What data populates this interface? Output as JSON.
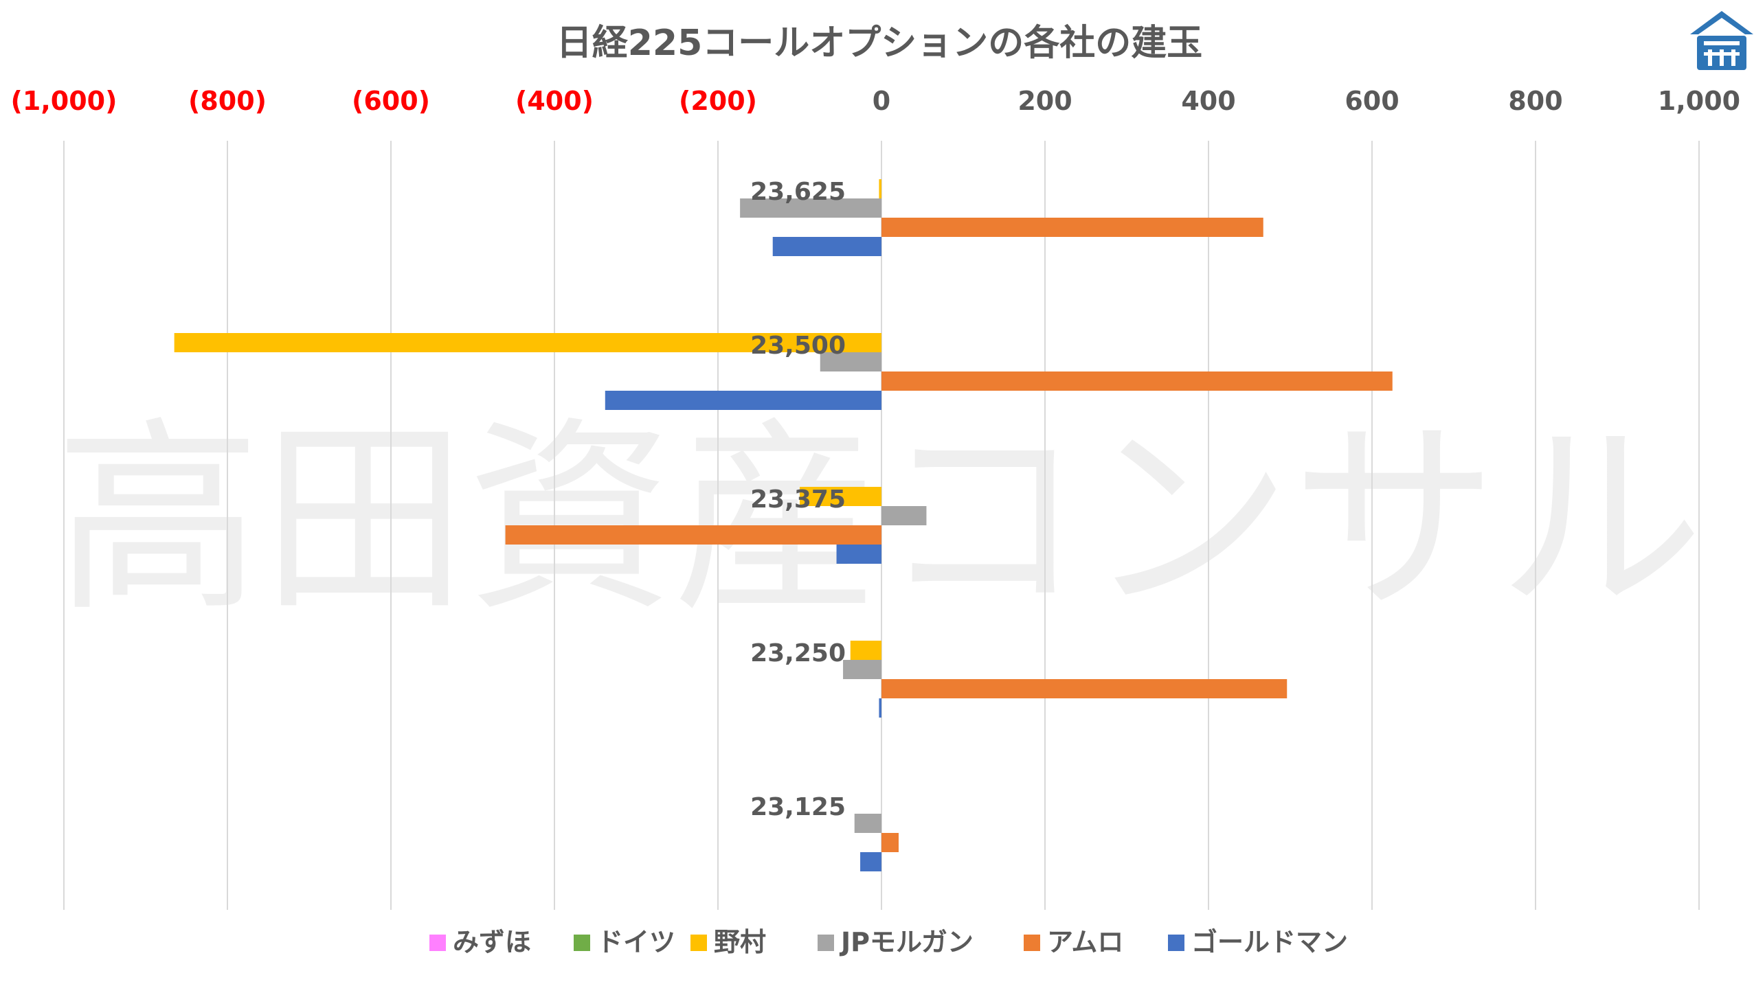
{
  "chart_data": {
    "type": "bar",
    "orientation": "horizontal",
    "title": "日経225コールオプションの各社の建玉",
    "watermark": "高田資産コンサル",
    "xlim": [
      -1000,
      1000
    ],
    "x_ticks": [
      {
        "value": -1000,
        "label": "(1,000)",
        "color": "#ff0000"
      },
      {
        "value": -800,
        "label": "(800)",
        "color": "#ff0000"
      },
      {
        "value": -600,
        "label": "(600)",
        "color": "#ff0000"
      },
      {
        "value": -400,
        "label": "(400)",
        "color": "#ff0000"
      },
      {
        "value": -200,
        "label": "(200)",
        "color": "#ff0000"
      },
      {
        "value": 0,
        "label": "0",
        "color": "#595959"
      },
      {
        "value": 200,
        "label": "200",
        "color": "#595959"
      },
      {
        "value": 400,
        "label": "400",
        "color": "#595959"
      },
      {
        "value": 600,
        "label": "600",
        "color": "#595959"
      },
      {
        "value": 800,
        "label": "800",
        "color": "#595959"
      },
      {
        "value": 1000,
        "label": "1,000",
        "color": "#595959"
      }
    ],
    "grid": true,
    "legend_position": "bottom",
    "categories": [
      "23,625",
      "23,500",
      "23,375",
      "23,250",
      "23,125"
    ],
    "series": [
      {
        "name": "みずほ",
        "color": "#ff80ff",
        "values": [
          0,
          0,
          0,
          0,
          0
        ]
      },
      {
        "name": "ドイツ",
        "color": "#70ad47",
        "values": [
          0,
          0,
          0,
          0,
          0
        ]
      },
      {
        "name": "野村",
        "color": "#ffc000",
        "values": [
          -3,
          -865,
          -100,
          -38,
          0
        ]
      },
      {
        "name": "JPモルガン",
        "color": "#a5a5a5",
        "values": [
          -173,
          -75,
          55,
          -47,
          -33
        ]
      },
      {
        "name": "アムロ",
        "color": "#ed7d31",
        "values": [
          467,
          625,
          -460,
          496,
          21
        ]
      },
      {
        "name": "ゴールドマン",
        "color": "#4472c4",
        "values": [
          -133,
          -338,
          -55,
          -3,
          -26
        ]
      }
    ]
  },
  "logo": {
    "name": "shrine-roof-logo",
    "color": "#2e75b6"
  }
}
